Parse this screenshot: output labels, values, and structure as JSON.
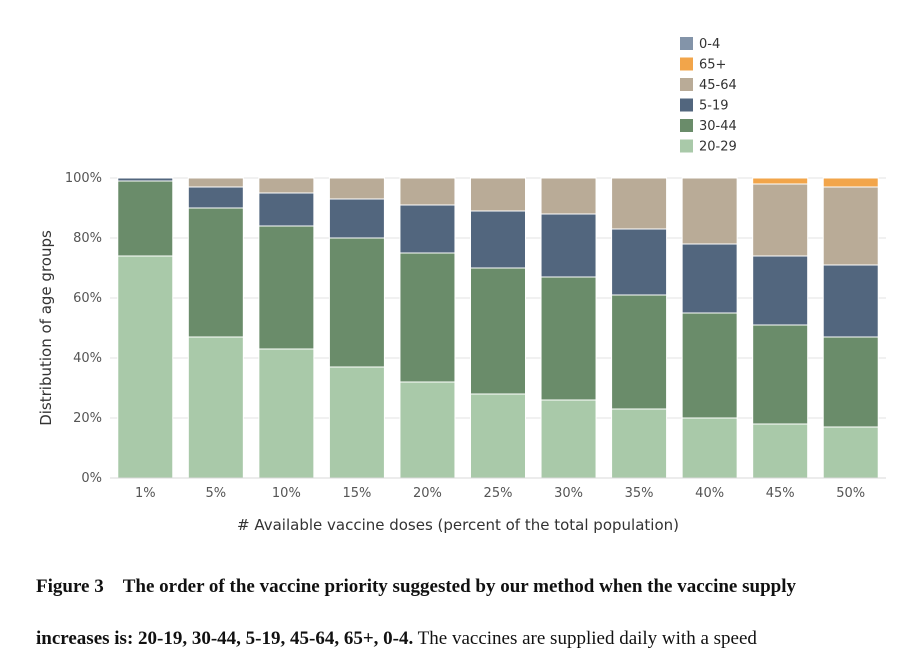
{
  "chart_data": {
    "type": "bar",
    "stacked": true,
    "xlabel": "# Available vaccine doses (percent of the total population)",
    "ylabel": "Distribution of age groups",
    "ylim": [
      0,
      100
    ],
    "yticks": [
      "0%",
      "20%",
      "40%",
      "60%",
      "80%",
      "100%"
    ],
    "categories": [
      "1%",
      "5%",
      "10%",
      "15%",
      "20%",
      "25%",
      "30%",
      "35%",
      "40%",
      "45%",
      "50%"
    ],
    "legend_position": "top-right",
    "legend_order": [
      "0-4",
      "65+",
      "45-64",
      "5-19",
      "30-44",
      "20-29"
    ],
    "series": [
      {
        "name": "20-29",
        "color": "#a9c9a9",
        "values": [
          74,
          47,
          43,
          37,
          32,
          28,
          26,
          23,
          20,
          18,
          17
        ]
      },
      {
        "name": "30-44",
        "color": "#6a8c6a",
        "values": [
          25,
          43,
          41,
          43,
          43,
          42,
          41,
          38,
          35,
          33,
          30
        ]
      },
      {
        "name": "5-19",
        "color": "#52667e",
        "values": [
          1,
          7,
          11,
          13,
          16,
          19,
          21,
          22,
          23,
          23,
          24
        ]
      },
      {
        "name": "45-64",
        "color": "#b9ab97",
        "values": [
          0,
          3,
          5,
          7,
          9,
          11,
          12,
          17,
          22,
          24,
          26
        ]
      },
      {
        "name": "65+",
        "color": "#f2a54a",
        "values": [
          0,
          0,
          0,
          0,
          0,
          0,
          0,
          0,
          0,
          2,
          3
        ]
      },
      {
        "name": "0-4",
        "color": "#8394a9",
        "values": [
          0,
          0,
          0,
          0,
          0,
          0,
          0,
          0,
          0,
          0,
          0
        ]
      }
    ]
  },
  "caption": {
    "figure_label": "Figure 3",
    "bold_text_1": "The order of the vaccine priority suggested by our method when the vaccine supply",
    "bold_text_2": "increases is: 20-19, 30-44, 5-19, 45-64, 65+, 0-4.",
    "plain_text_2": "The vaccines are supplied daily with a speed"
  }
}
